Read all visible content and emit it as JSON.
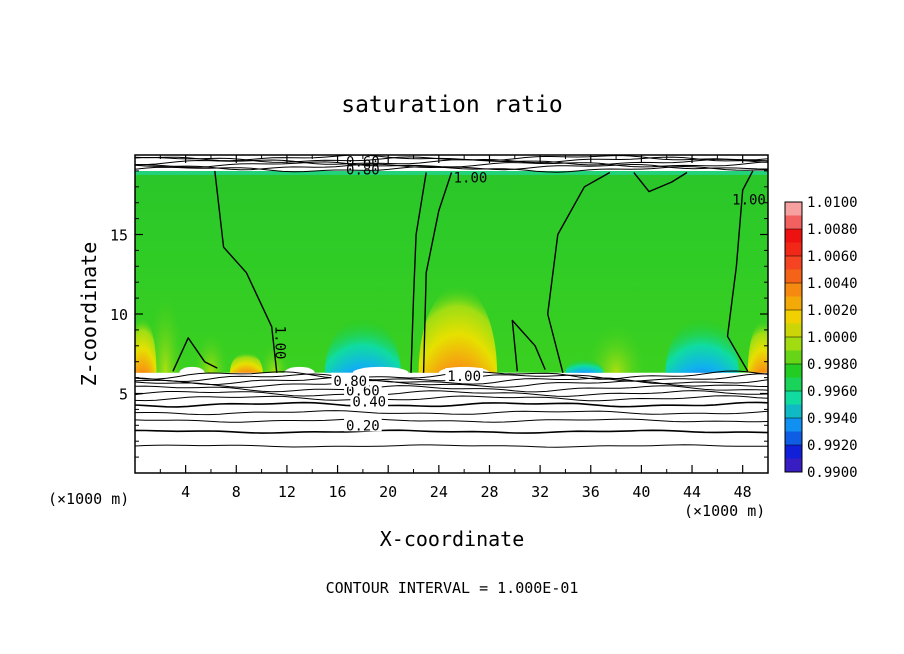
{
  "chart_data": {
    "type": "heatmap",
    "title": "saturation ratio",
    "xlabel": "X-coordinate",
    "ylabel": "Z-coordinate",
    "x_units": "(×1000 m)",
    "xlim": [
      0,
      50
    ],
    "ylim": [
      0,
      20
    ],
    "x_ticks": [
      4,
      8,
      12,
      16,
      20,
      24,
      28,
      32,
      36,
      40,
      44,
      48
    ],
    "y_ticks": [
      5,
      10,
      15
    ],
    "footer": "CONTOUR INTERVAL = 1.000E-01",
    "colorbar": {
      "levels": [
        "1.0100",
        "1.0080",
        "1.0060",
        "1.0040",
        "1.0020",
        "1.0000",
        "0.9980",
        "0.9960",
        "0.9940",
        "0.9920",
        "0.9900"
      ],
      "colors": [
        "#f6a0a0",
        "#ee1111",
        "#f44422",
        "#f68a10",
        "#f0d000",
        "#a0dc10",
        "#22cc22",
        "#10dca0",
        "#1090f0",
        "#1020d8",
        "#6a1aa8"
      ]
    },
    "contour_labels": [
      {
        "text": "0.20",
        "x": 18,
        "z": 3.0
      },
      {
        "text": "0.40",
        "x": 18.5,
        "z": 4.5
      },
      {
        "text": "0.60",
        "x": 18,
        "z": 5.2
      },
      {
        "text": "0.80",
        "x": 17,
        "z": 5.8
      },
      {
        "text": "1.00",
        "x": 26,
        "z": 6.1
      },
      {
        "text": "1.00",
        "x": 11.5,
        "z": 8.2
      },
      {
        "text": "1.00",
        "x": 26.5,
        "z": 18.6
      },
      {
        "text": "1.00",
        "x": 48.5,
        "z": 17.2
      },
      {
        "text": "0.80",
        "x": 18,
        "z": 19.1
      },
      {
        "text": "0.60",
        "x": 18,
        "z": 19.6
      }
    ]
  }
}
